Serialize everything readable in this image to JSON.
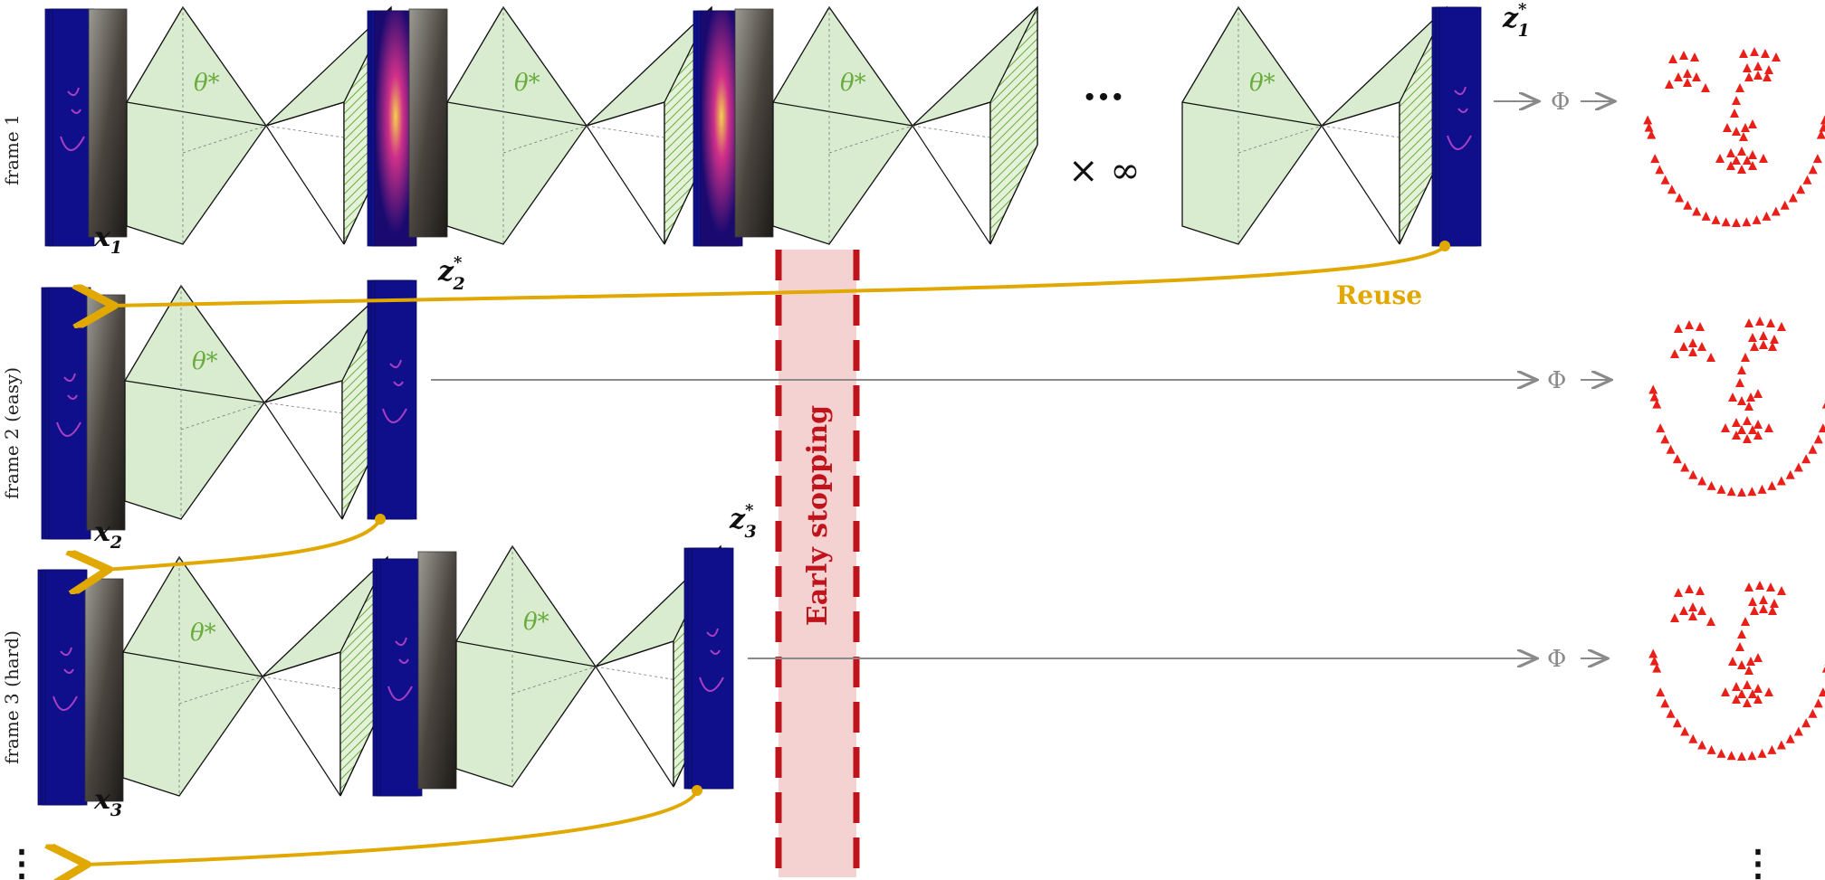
{
  "rows": [
    {
      "label": "frame 1"
    },
    {
      "label": "frame 2 (easy)"
    },
    {
      "label": "frame 3 (hard)"
    }
  ],
  "network": {
    "param_label": "θ*"
  },
  "inputs": {
    "x1": "x",
    "x1_sub": "1",
    "x2": "x",
    "x2_sub": "2",
    "x3": "x",
    "x3_sub": "3"
  },
  "fixed_points": {
    "z1": "z",
    "z1_sub": "1",
    "z2": "z",
    "z2_sub": "2",
    "z3": "z",
    "z3_sub": "3",
    "sup": "*"
  },
  "repeat": {
    "dots": "···",
    "times": "× ∞"
  },
  "output_fn": "Φ",
  "reuse_label": "Reuse",
  "early_stopping_label": "Early stopping",
  "more_rows": "⋮",
  "colors": {
    "cone_fill": "#d9ecd0",
    "feature_fill": "#0f0f8c",
    "reuse": "#e0a800",
    "early_stop": "#c0141d",
    "early_stop_fill": "#f3c7c7",
    "landmarks": "#e8201a",
    "theta": "#6aab3e",
    "arrow_gray": "#8a8a8a"
  }
}
